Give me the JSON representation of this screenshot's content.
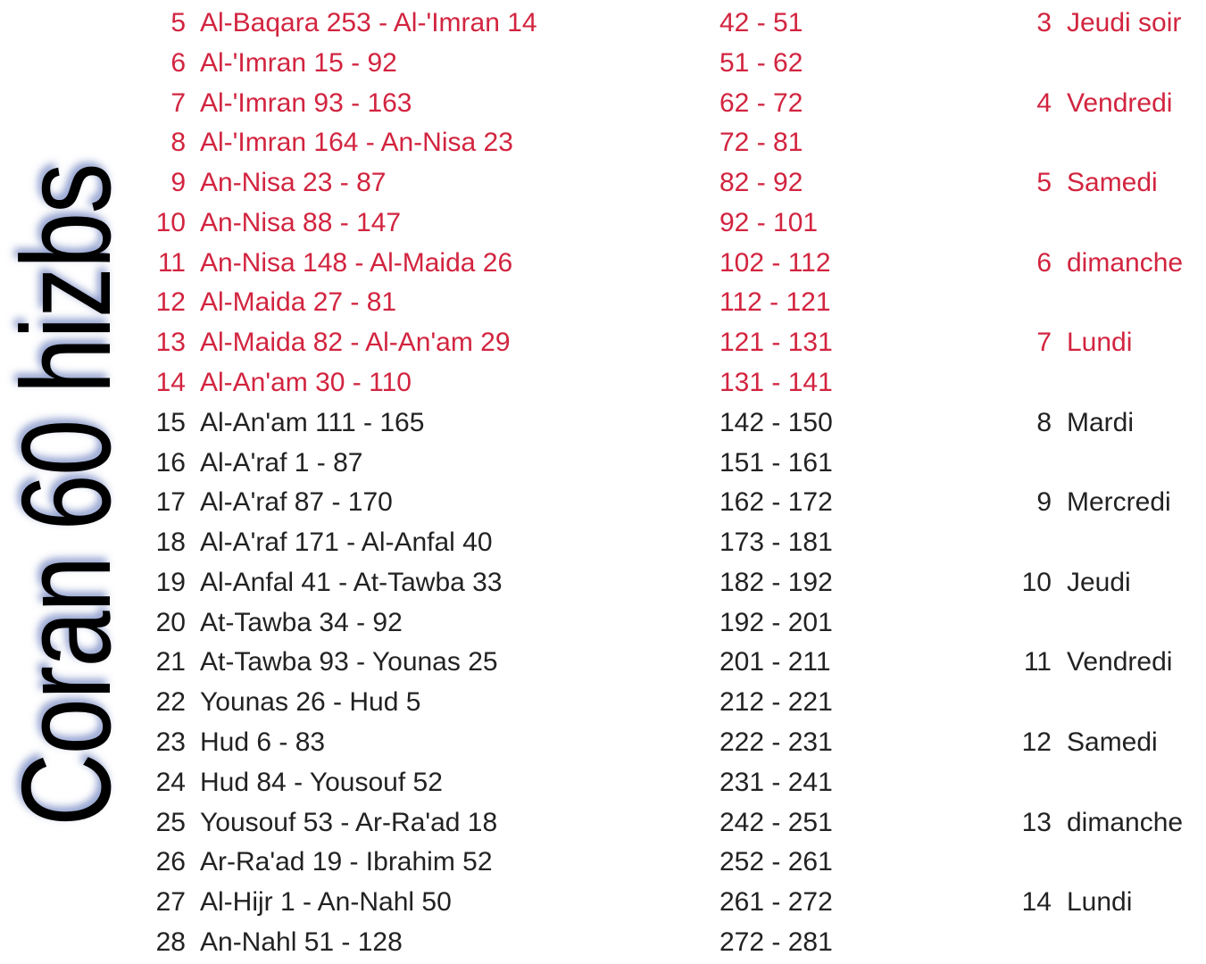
{
  "title": "Coran 60 hizbs",
  "colors": {
    "highlight": "#d2243f",
    "normal": "#222222"
  },
  "rows": [
    {
      "hizb": "5",
      "range": "Al-Baqara 253 - Al-'Imran 14",
      "pages": "42 - 51",
      "day_num": "3",
      "day": "Jeudi soir",
      "red": true
    },
    {
      "hizb": "6",
      "range": "Al-'Imran 15 - 92",
      "pages": "51 - 62",
      "day_num": "",
      "day": "",
      "red": true
    },
    {
      "hizb": "7",
      "range": "Al-'Imran 93 - 163",
      "pages": "62 - 72",
      "day_num": "4",
      "day": "Vendredi",
      "red": true
    },
    {
      "hizb": "8",
      "range": "Al-'Imran 164 - An-Nisa 23",
      "pages": "72 - 81",
      "day_num": "",
      "day": "",
      "red": true
    },
    {
      "hizb": "9",
      "range": "An-Nisa 23 - 87",
      "pages": "82 - 92",
      "day_num": "5",
      "day": "Samedi",
      "red": true
    },
    {
      "hizb": "10",
      "range": "An-Nisa 88 - 147",
      "pages": "92 - 101",
      "day_num": "",
      "day": "",
      "red": true
    },
    {
      "hizb": "11",
      "range": "An-Nisa 148 - Al-Maida 26",
      "pages": "102 - 112",
      "day_num": "6",
      "day": "dimanche",
      "red": true
    },
    {
      "hizb": "12",
      "range": "Al-Maida 27 - 81",
      "pages": "112 - 121",
      "day_num": "",
      "day": "",
      "red": true
    },
    {
      "hizb": "13",
      "range": "Al-Maida 82 - Al-An'am 29",
      "pages": "121 - 131",
      "day_num": "7",
      "day": "Lundi",
      "red": true
    },
    {
      "hizb": "14",
      "range": "Al-An'am 30 - 110",
      "pages": "131 - 141",
      "day_num": "",
      "day": "",
      "red": true
    },
    {
      "hizb": "15",
      "range": "Al-An'am 111 - 165",
      "pages": "142 - 150",
      "day_num": "8",
      "day": "Mardi",
      "red": false
    },
    {
      "hizb": "16",
      "range": "Al-A'raf 1 - 87",
      "pages": "151 - 161",
      "day_num": "",
      "day": "",
      "red": false
    },
    {
      "hizb": "17",
      "range": "Al-A'raf 87 - 170",
      "pages": "162 - 172",
      "day_num": "9",
      "day": "Mercredi",
      "red": false
    },
    {
      "hizb": "18",
      "range": "Al-A'raf 171 - Al-Anfal 40",
      "pages": "173 - 181",
      "day_num": "",
      "day": "",
      "red": false
    },
    {
      "hizb": "19",
      "range": "Al-Anfal 41 - At-Tawba 33",
      "pages": "182 - 192",
      "day_num": "10",
      "day": "Jeudi",
      "red": false
    },
    {
      "hizb": "20",
      "range": "At-Tawba 34 - 92",
      "pages": "192 - 201",
      "day_num": "",
      "day": "",
      "red": false
    },
    {
      "hizb": "21",
      "range": "At-Tawba 93 - Younas 25",
      "pages": "201 - 211",
      "day_num": "11",
      "day": "Vendredi",
      "red": false
    },
    {
      "hizb": "22",
      "range": "Younas 26 - Hud 5",
      "pages": "212 - 221",
      "day_num": "",
      "day": "",
      "red": false
    },
    {
      "hizb": "23",
      "range": "Hud 6 - 83",
      "pages": "222 - 231",
      "day_num": "12",
      "day": "Samedi",
      "red": false
    },
    {
      "hizb": "24",
      "range": "Hud 84 - Yousouf 52",
      "pages": "231 - 241",
      "day_num": "",
      "day": "",
      "red": false
    },
    {
      "hizb": "25",
      "range": "Yousouf 53 - Ar-Ra'ad 18",
      "pages": "242 - 251",
      "day_num": "13",
      "day": "dimanche",
      "red": false
    },
    {
      "hizb": "26",
      "range": "Ar-Ra'ad 19 - Ibrahim 52",
      "pages": "252 - 261",
      "day_num": "",
      "day": "",
      "red": false
    },
    {
      "hizb": "27",
      "range": "Al-Hijr 1 - An-Nahl 50",
      "pages": "261 - 272",
      "day_num": "14",
      "day": "Lundi",
      "red": false
    },
    {
      "hizb": "28",
      "range": "An-Nahl 51 - 128",
      "pages": "272 - 281",
      "day_num": "",
      "day": "",
      "red": false
    }
  ]
}
